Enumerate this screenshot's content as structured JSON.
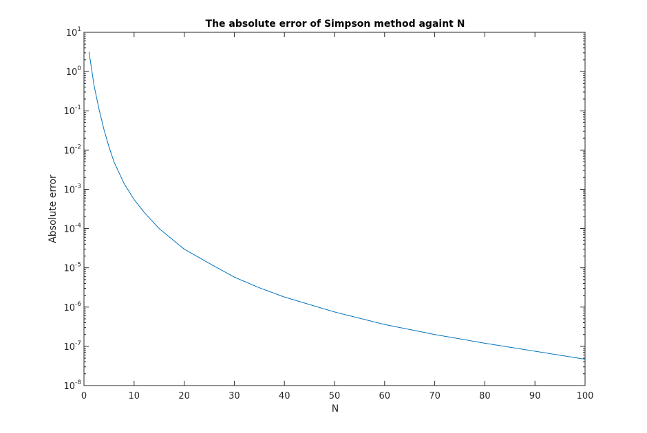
{
  "chart_data": {
    "type": "line",
    "title": "The absolute error of Simpson method againt N",
    "xlabel": "N",
    "ylabel": "Absolute error",
    "xlim": [
      0,
      100
    ],
    "ylim": [
      1e-08,
      10
    ],
    "yscale": "log",
    "grid": false,
    "x_ticks": [
      "0",
      "10",
      "20",
      "30",
      "40",
      "50",
      "60",
      "70",
      "80",
      "90",
      "100"
    ],
    "y_ticks": [
      {
        "base": "10",
        "exp": "1"
      },
      {
        "base": "10",
        "exp": "0"
      },
      {
        "base": "10",
        "exp": "-1"
      },
      {
        "base": "10",
        "exp": "-2"
      },
      {
        "base": "10",
        "exp": "-3"
      },
      {
        "base": "10",
        "exp": "-4"
      },
      {
        "base": "10",
        "exp": "-5"
      },
      {
        "base": "10",
        "exp": "-6"
      },
      {
        "base": "10",
        "exp": "-7"
      },
      {
        "base": "10",
        "exp": "-8"
      }
    ],
    "series": [
      {
        "color": "#0072bd",
        "x": [
          1,
          2,
          3,
          4,
          5,
          6,
          8,
          10,
          12,
          15,
          20,
          25,
          30,
          35,
          40,
          50,
          60,
          70,
          80,
          90,
          100
        ],
        "y": [
          3.2,
          0.45,
          0.11,
          0.033,
          0.012,
          0.005,
          0.0014,
          0.00055,
          0.00026,
          0.0001,
          3e-05,
          1.3e-05,
          5.8e-06,
          3.1e-06,
          1.8e-06,
          7.5e-07,
          3.6e-07,
          2e-07,
          1.2e-07,
          7.5e-08,
          4.7e-08
        ]
      }
    ]
  }
}
